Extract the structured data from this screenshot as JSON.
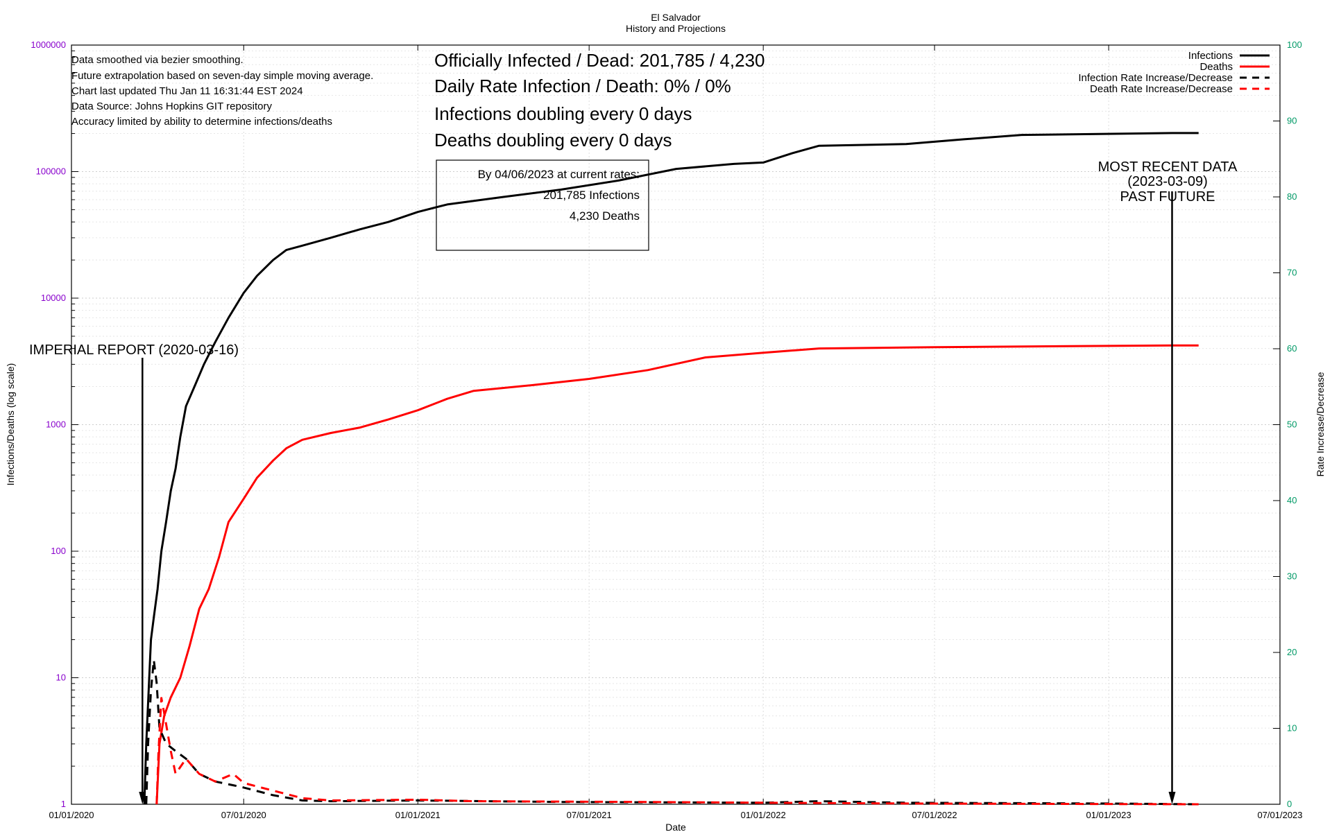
{
  "chart_data": {
    "type": "line",
    "title": "El Salvador",
    "subtitle": "History and Projections",
    "xlabel": "Date",
    "ylabel_left": "Infections/Deaths (log scale)",
    "ylabel_right": "Rate Increase/Decrease",
    "x_ticks": [
      "01/01/2020",
      "07/01/2020",
      "01/01/2021",
      "07/01/2021",
      "01/01/2022",
      "07/01/2022",
      "01/01/2023",
      "07/01/2023"
    ],
    "y_left_ticks": [
      "1",
      "10",
      "100",
      "1000",
      "10000",
      "100000",
      "1000000"
    ],
    "y_right_ticks": [
      "0",
      "10",
      "20",
      "30",
      "40",
      "50",
      "60",
      "70",
      "80",
      "90",
      "100"
    ],
    "y_left_scale": "log",
    "ylim_left": [
      1,
      1000000
    ],
    "ylim_right": [
      0,
      100
    ],
    "xlim": [
      "2020-01-01",
      "2023-07-01"
    ],
    "grid": true,
    "legend_position": "top-right",
    "legend": [
      {
        "label": "Infections",
        "color": "#000000",
        "dash": "solid"
      },
      {
        "label": "Deaths",
        "color": "#ff0000",
        "dash": "solid"
      },
      {
        "label": "Infection Rate Increase/Decrease",
        "color": "#000000",
        "dash": "dashed"
      },
      {
        "label": "Death Rate Increase/Decrease",
        "color": "#ff0000",
        "dash": "dashed"
      }
    ],
    "colors": {
      "left_axis": "#8800cc",
      "right_axis": "#009966"
    },
    "series": [
      {
        "name": "Infections",
        "axis": "left",
        "color": "#000000",
        "points": [
          [
            "2020-03-18",
            1
          ],
          [
            "2020-03-20",
            3
          ],
          [
            "2020-03-25",
            20
          ],
          [
            "2020-03-28",
            30
          ],
          [
            "2020-04-01",
            50
          ],
          [
            "2020-04-05",
            100
          ],
          [
            "2020-04-10",
            170
          ],
          [
            "2020-04-15",
            300
          ],
          [
            "2020-04-20",
            450
          ],
          [
            "2020-04-25",
            800
          ],
          [
            "2020-05-01",
            1400
          ],
          [
            "2020-05-10",
            2000
          ],
          [
            "2020-05-20",
            3000
          ],
          [
            "2020-06-01",
            4500
          ],
          [
            "2020-06-15",
            7000
          ],
          [
            "2020-07-01",
            11000
          ],
          [
            "2020-07-15",
            15000
          ],
          [
            "2020-08-01",
            20000
          ],
          [
            "2020-08-15",
            24000
          ],
          [
            "2020-09-01",
            26000
          ],
          [
            "2020-10-01",
            30000
          ],
          [
            "2020-11-01",
            35000
          ],
          [
            "2020-12-01",
            40000
          ],
          [
            "2021-01-01",
            48000
          ],
          [
            "2021-02-01",
            55000
          ],
          [
            "2021-04-01",
            63000
          ],
          [
            "2021-06-01",
            72000
          ],
          [
            "2021-08-01",
            85000
          ],
          [
            "2021-10-01",
            105000
          ],
          [
            "2021-12-01",
            115000
          ],
          [
            "2022-01-01",
            118000
          ],
          [
            "2022-02-01",
            140000
          ],
          [
            "2022-03-01",
            160000
          ],
          [
            "2022-06-01",
            165000
          ],
          [
            "2022-08-01",
            180000
          ],
          [
            "2022-10-01",
            195000
          ],
          [
            "2023-03-09",
            201785
          ],
          [
            "2023-04-06",
            201785
          ]
        ]
      },
      {
        "name": "Deaths",
        "axis": "left",
        "color": "#ff0000",
        "points": [
          [
            "2020-03-31",
            1
          ],
          [
            "2020-04-03",
            3
          ],
          [
            "2020-04-08",
            5
          ],
          [
            "2020-04-15",
            7
          ],
          [
            "2020-04-25",
            10
          ],
          [
            "2020-05-05",
            18
          ],
          [
            "2020-05-15",
            35
          ],
          [
            "2020-05-25",
            50
          ],
          [
            "2020-06-05",
            90
          ],
          [
            "2020-06-15",
            170
          ],
          [
            "2020-07-01",
            260
          ],
          [
            "2020-07-15",
            380
          ],
          [
            "2020-08-01",
            520
          ],
          [
            "2020-08-15",
            650
          ],
          [
            "2020-09-01",
            760
          ],
          [
            "2020-10-01",
            860
          ],
          [
            "2020-11-01",
            950
          ],
          [
            "2020-12-01",
            1100
          ],
          [
            "2021-01-01",
            1300
          ],
          [
            "2021-02-01",
            1600
          ],
          [
            "2021-03-01",
            1850
          ],
          [
            "2021-05-01",
            2050
          ],
          [
            "2021-07-01",
            2300
          ],
          [
            "2021-09-01",
            2700
          ],
          [
            "2021-11-01",
            3400
          ],
          [
            "2022-01-01",
            3700
          ],
          [
            "2022-03-01",
            4000
          ],
          [
            "2022-07-01",
            4100
          ],
          [
            "2023-03-09",
            4230
          ],
          [
            "2023-04-06",
            4230
          ]
        ]
      },
      {
        "name": "Infection Rate Increase/Decrease",
        "axis": "right",
        "color": "#000000",
        "points": [
          [
            "2020-03-20",
            0
          ],
          [
            "2020-03-22",
            8
          ],
          [
            "2020-03-25",
            15
          ],
          [
            "2020-03-28",
            19
          ],
          [
            "2020-03-31",
            16
          ],
          [
            "2020-04-03",
            10
          ],
          [
            "2020-04-10",
            8
          ],
          [
            "2020-04-20",
            7
          ],
          [
            "2020-05-01",
            6
          ],
          [
            "2020-05-15",
            4
          ],
          [
            "2020-06-01",
            3
          ],
          [
            "2020-06-20",
            2.5
          ],
          [
            "2020-07-01",
            2.2
          ],
          [
            "2020-08-01",
            1.2
          ],
          [
            "2020-09-01",
            0.5
          ],
          [
            "2020-10-01",
            0.4
          ],
          [
            "2021-01-01",
            0.5
          ],
          [
            "2021-06-01",
            0.3
          ],
          [
            "2022-01-01",
            0.2
          ],
          [
            "2022-03-01",
            0.4
          ],
          [
            "2022-06-01",
            0.2
          ],
          [
            "2023-01-01",
            0.1
          ],
          [
            "2023-04-06",
            0
          ]
        ]
      },
      {
        "name": "Death Rate Increase/Decrease",
        "axis": "right",
        "color": "#ff0000",
        "points": [
          [
            "2020-03-31",
            0
          ],
          [
            "2020-04-02",
            7
          ],
          [
            "2020-04-05",
            14
          ],
          [
            "2020-04-08",
            12
          ],
          [
            "2020-04-15",
            7
          ],
          [
            "2020-04-20",
            4
          ],
          [
            "2020-05-01",
            6
          ],
          [
            "2020-05-15",
            4
          ],
          [
            "2020-06-01",
            3
          ],
          [
            "2020-06-20",
            4
          ],
          [
            "2020-07-01",
            2.8
          ],
          [
            "2020-08-01",
            1.8
          ],
          [
            "2020-09-01",
            0.8
          ],
          [
            "2020-10-01",
            0.5
          ],
          [
            "2021-01-01",
            0.6
          ],
          [
            "2021-03-01",
            0.4
          ],
          [
            "2021-09-01",
            0.3
          ],
          [
            "2022-01-01",
            0.2
          ],
          [
            "2022-06-01",
            0.1
          ],
          [
            "2023-04-06",
            0
          ]
        ]
      }
    ],
    "markers": [
      {
        "date": "2020-03-16",
        "label": "IMPERIAL REPORT (2020-03-16)"
      },
      {
        "date": "2023-03-09",
        "label_lines": [
          "MOST RECENT DATA",
          "(2023-03-09)",
          "PAST   FUTURE"
        ]
      }
    ]
  },
  "notes": [
    "Data smoothed via bezier smoothing.",
    "Future extrapolation based on seven-day simple moving average.",
    "Chart last updated Thu Jan 11 16:31:44 EST 2024",
    "Data Source: Johns Hopkins GIT repository",
    "Accuracy limited by ability to determine infections/deaths"
  ],
  "headline": [
    "Officially Infected / Dead:  201,785 / 4,230",
    "Daily Rate Infection / Death:  0% / 0%",
    "Infections doubling every 0 days",
    "Deaths doubling every 0 days"
  ],
  "projection_box": [
    "By 04/06/2023 at current rates:",
    "201,785 Infections",
    "4,230 Deaths"
  ]
}
